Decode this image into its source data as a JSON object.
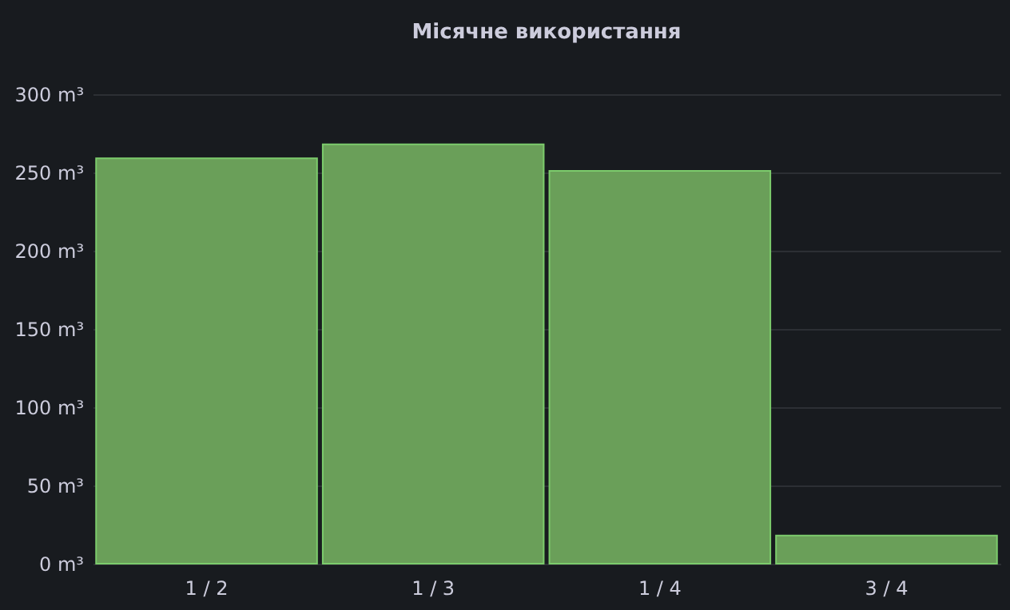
{
  "chart_data": {
    "type": "bar",
    "title": "Місячне використання",
    "categories": [
      "1 / 2",
      "1 / 3",
      "1 / 4",
      "3 / 4"
    ],
    "values": [
      259,
      268,
      251,
      18
    ],
    "color": "#6a9f59",
    "ylim": [
      0,
      300
    ],
    "yticks": [
      {
        "value": 0,
        "label": "0 m³"
      },
      {
        "value": 50,
        "label": "50 m³"
      },
      {
        "value": 100,
        "label": "100 m³"
      },
      {
        "value": 150,
        "label": "150 m³"
      },
      {
        "value": 200,
        "label": "200 m³"
      },
      {
        "value": 250,
        "label": "250 m³"
      },
      {
        "value": 300,
        "label": "300 m³"
      }
    ],
    "grid": "y"
  }
}
